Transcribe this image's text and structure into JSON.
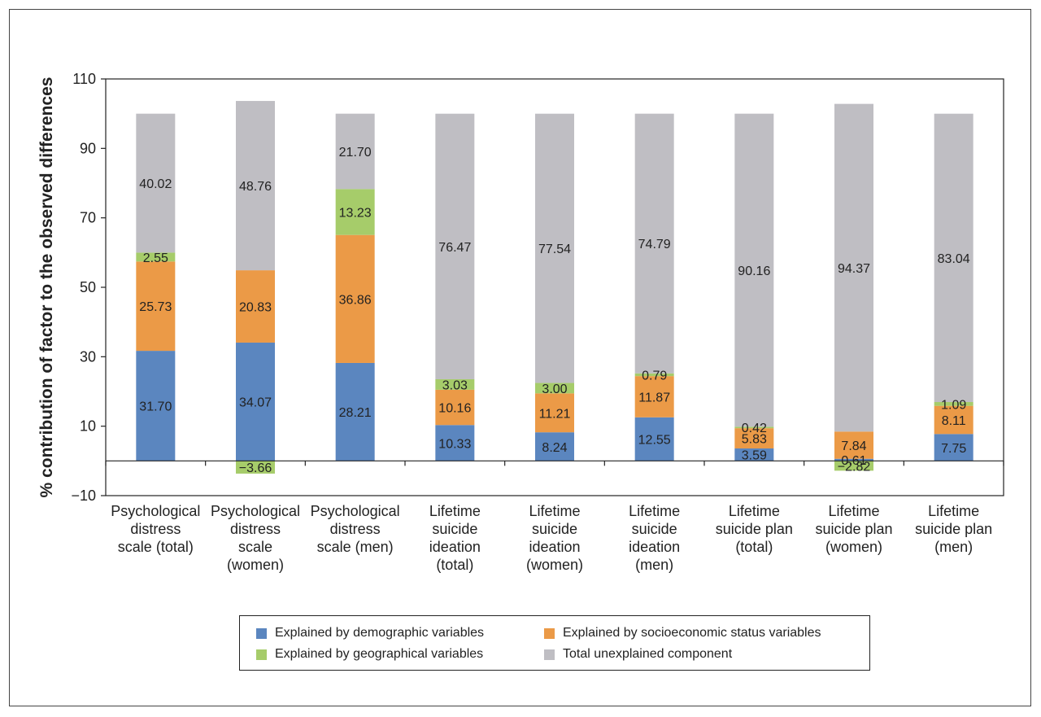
{
  "chart_data": {
    "type": "bar",
    "stacked": true,
    "ylabel": "% contribution of factor to the observed differences",
    "ylim": [
      -10,
      110
    ],
    "yticks": [
      -10,
      10,
      30,
      50,
      70,
      90,
      110
    ],
    "categories": [
      [
        "Psychological",
        "distress",
        "scale (total)"
      ],
      [
        "Psychological",
        "distress",
        "scale",
        "(women)"
      ],
      [
        "Psychological",
        "distress",
        "scale (men)"
      ],
      [
        "Lifetime",
        "suicide",
        "ideation",
        "(total)"
      ],
      [
        "Lifetime",
        "suicide",
        "ideation",
        "(women)"
      ],
      [
        "Lifetime",
        "suicide",
        "ideation",
        "(men)"
      ],
      [
        "Lifetime",
        "suicide plan",
        "(total)"
      ],
      [
        "Lifetime",
        "suicide plan",
        "(women)"
      ],
      [
        "Lifetime",
        "suicide plan",
        "(men)"
      ]
    ],
    "series": [
      {
        "name": "Explained by demographic variables",
        "color": "#5B86BF",
        "values": [
          31.7,
          34.07,
          28.21,
          10.33,
          8.24,
          12.55,
          3.59,
          0.61,
          7.75
        ],
        "labels": [
          "31.70",
          "34.07",
          "28.21",
          "10.33",
          "8.24",
          "12.55",
          "3.59",
          "0.61",
          "7.75"
        ]
      },
      {
        "name": "Explained by socioeconomic status variables",
        "color": "#EB9A47",
        "values": [
          25.73,
          20.83,
          36.86,
          10.16,
          11.21,
          11.87,
          5.83,
          7.84,
          8.11
        ],
        "labels": [
          "25.73",
          "20.83",
          "36.86",
          "10.16",
          "11.21",
          "11.87",
          "5.83",
          "7.84",
          "8.11"
        ]
      },
      {
        "name": "Explained by geographical variables",
        "color": "#A6CC6A",
        "values": [
          2.55,
          -3.66,
          13.23,
          3.03,
          3.0,
          0.79,
          0.42,
          -2.82,
          1.09
        ],
        "labels": [
          "2.55",
          "−3.66",
          "13.23",
          "3.03",
          "3.00",
          "0.79",
          "0.42",
          "−2.82",
          "1.09"
        ]
      },
      {
        "name": "Total unexplained component",
        "color": "#BFBEC3",
        "values": [
          40.02,
          48.76,
          21.7,
          76.47,
          77.54,
          74.79,
          90.16,
          94.37,
          83.04
        ],
        "labels": [
          "40.02",
          "48.76",
          "21.70",
          "76.47",
          "77.54",
          "74.79",
          "90.16",
          "94.37",
          "83.04"
        ]
      }
    ],
    "legend_position": "bottom",
    "grid": false
  }
}
